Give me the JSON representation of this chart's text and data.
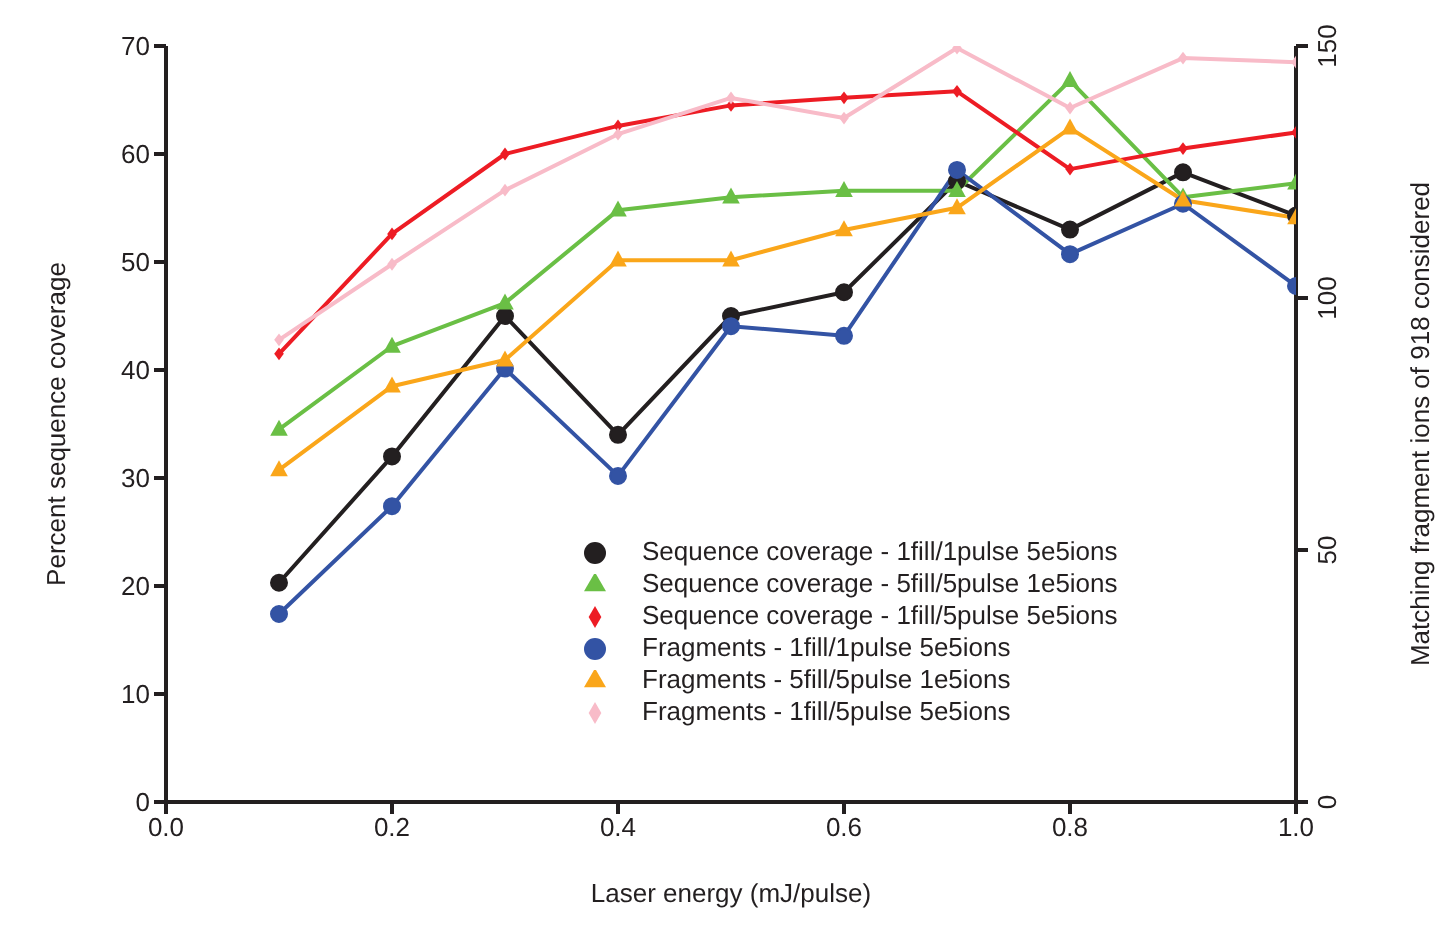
{
  "chart_data": {
    "type": "line",
    "xlabel": "Laser energy (mJ/pulse)",
    "ylabel": "Percent sequence coverage",
    "y2label": "Matching fragment ions of 918 considered",
    "x": [
      0.1,
      0.2,
      0.3,
      0.4,
      0.5,
      0.6,
      0.7,
      0.8,
      0.9,
      1.0
    ],
    "xlim": [
      0,
      1
    ],
    "xticks": [
      {
        "value": 0,
        "label": "0.0"
      },
      0.2,
      0.4,
      0.6,
      0.8,
      {
        "value": 1,
        "label": "1.0"
      }
    ],
    "ylim": [
      0,
      70
    ],
    "yticks": [
      0,
      10,
      20,
      30,
      40,
      50,
      60,
      70
    ],
    "y2lim": [
      0,
      150
    ],
    "y2ticks": [
      0,
      50,
      100,
      150
    ],
    "grid": false,
    "legend": "bottom right",
    "series": [
      {
        "name": "Sequence coverage - 1fill/1pulse 5e5ions",
        "color": "#231f20",
        "marker": "circle",
        "values": [
          20.3,
          32,
          45,
          34,
          45,
          47.2,
          57.5,
          53,
          58.3,
          54.3
        ]
      },
      {
        "name": "Sequence coverage - 5fill/5pulse 1e5ions",
        "color": "#6abf45",
        "marker": "triangle",
        "values": [
          34.5,
          42.2,
          46.2,
          54.8,
          56,
          56.6,
          56.6,
          66.8,
          56,
          57.3
        ]
      },
      {
        "name": "Sequence coverage - 1fill/5pulse 5e5ions",
        "color": "#ed1c24",
        "marker": "diamond",
        "values": [
          41.5,
          52.6,
          60,
          62.6,
          64.5,
          65.2,
          65.8,
          58.6,
          60.5,
          62
        ]
      },
      {
        "name": "Fragments - 1fill/1pulse 5e5ions",
        "color": "#3353a4",
        "marker": "circle",
        "axis": "y2",
        "values": [
          37.3,
          58.7,
          86,
          64.7,
          94.4,
          92.5,
          125.4,
          108.7,
          118.7,
          102.4
        ]
      },
      {
        "name": "Fragments - 5fill/5pulse 1e5ions",
        "color": "#faa61a",
        "marker": "triangle",
        "axis": "y2",
        "values": [
          65.9,
          82.5,
          87.7,
          107.5,
          107.5,
          113.5,
          117.9,
          133.7,
          119.4,
          115.9
        ]
      },
      {
        "name": "Fragments - 1fill/5pulse 5e5ions",
        "color": "#f8bbc8",
        "marker": "diamond",
        "axis": "y2",
        "values": [
          91.7,
          106.7,
          121.4,
          132.5,
          139.7,
          135.7,
          149.6,
          137.7,
          147.6,
          146.8
        ]
      }
    ]
  }
}
